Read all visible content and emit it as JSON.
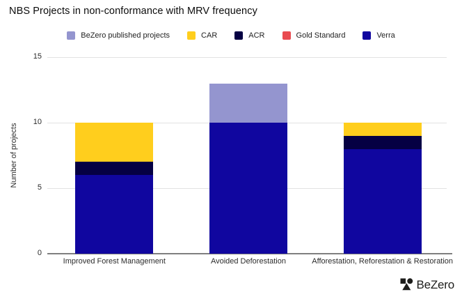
{
  "title": "NBS Projects in non-conformance with MRV frequency",
  "legend": {
    "items": [
      {
        "label": "BeZero published projects",
        "color": "#9495CF"
      },
      {
        "label": "CAR",
        "color": "#FFCE1D"
      },
      {
        "label": "ACR",
        "color": "#050043"
      },
      {
        "label": "Gold Standard",
        "color": "#E94B50"
      },
      {
        "label": "Verra",
        "color": "#10069F"
      }
    ]
  },
  "chart_data": {
    "type": "bar",
    "stacked": true,
    "title": "NBS Projects in non-conformance with MRV frequency",
    "categories": [
      "Improved Forest Management",
      "Avoided Deforestation",
      "Afforestation, Reforestation & Restoration"
    ],
    "series": [
      {
        "name": "Verra",
        "color": "#10069F",
        "values": [
          6,
          10,
          8
        ]
      },
      {
        "name": "ACR",
        "color": "#050043",
        "values": [
          1,
          0,
          1
        ]
      },
      {
        "name": "CAR",
        "color": "#FFCE1D",
        "values": [
          3,
          0,
          1
        ]
      },
      {
        "name": "BeZero published projects",
        "color": "#9495CF",
        "values": [
          0,
          3,
          0
        ]
      },
      {
        "name": "Gold Standard",
        "color": "#E94B50",
        "values": [
          0,
          0,
          0
        ]
      }
    ],
    "totals": [
      10,
      13,
      10
    ],
    "xlabel": "",
    "ylabel": "Number of projects",
    "yticks": [
      0,
      5,
      10,
      15
    ],
    "ylim": [
      0,
      15
    ],
    "grid": true,
    "legend_position": "top"
  },
  "footer": {
    "brand": "BeZero"
  }
}
